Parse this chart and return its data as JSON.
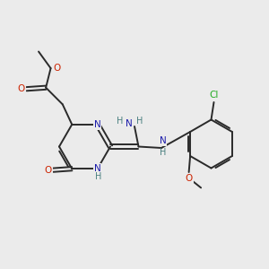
{
  "background_color": "#ebebeb",
  "atom_colors": {
    "N": "#1a1aaa",
    "O": "#cc2200",
    "Cl": "#22aa22",
    "H": "#4a8080"
  },
  "bond_color": "#2a2a2a",
  "bond_width": 1.4,
  "figsize": [
    3.0,
    3.0
  ],
  "dpi": 100
}
